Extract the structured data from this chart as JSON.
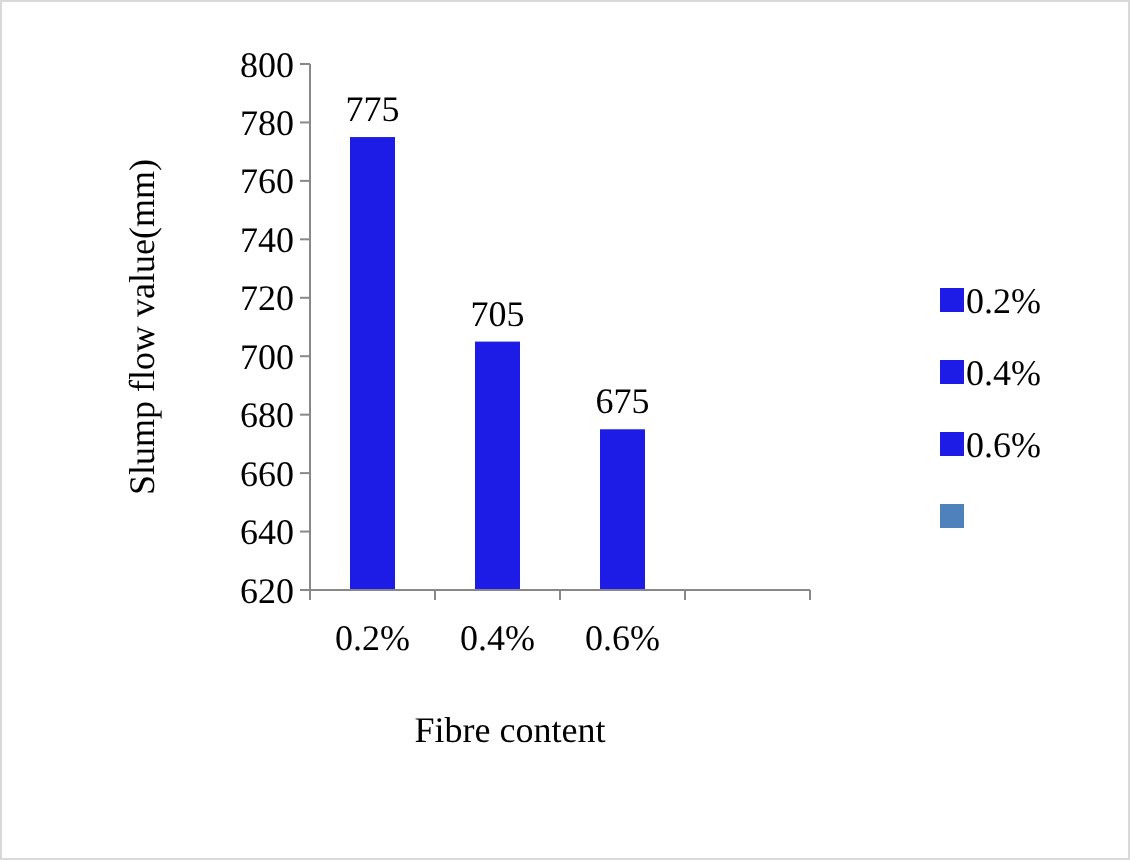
{
  "chart_data": {
    "type": "bar",
    "xlabel": "Fibre content",
    "ylabel": "Slump flow value(mm)",
    "categories": [
      "0.2%",
      "0.4%",
      "0.6%",
      null
    ],
    "series": [
      {
        "name": "0.2%",
        "color": "#1c1ce6",
        "values": [
          775,
          null,
          null,
          null
        ]
      },
      {
        "name": "0.4%",
        "color": "#1c1ce6",
        "values": [
          null,
          705,
          null,
          null
        ]
      },
      {
        "name": "0.6%",
        "color": "#1c1ce6",
        "values": [
          null,
          null,
          675,
          null
        ]
      },
      {
        "color": "#4f81bd",
        "values": [
          null,
          null,
          null,
          null
        ]
      }
    ],
    "stacked": true,
    "ylim": [
      620,
      800
    ],
    "yticks": [
      620,
      640,
      660,
      680,
      700,
      720,
      740,
      760,
      780,
      800
    ],
    "data_labels": true,
    "grid": false,
    "legend": "right"
  }
}
